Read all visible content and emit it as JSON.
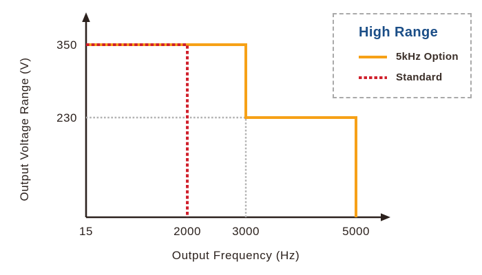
{
  "chart_data": {
    "type": "line",
    "title": "",
    "xlabel": "Output Frequency (Hz)",
    "ylabel": "Output Voltage Range (V)",
    "x_ticks": [
      "15",
      "2000",
      "3000",
      "5000"
    ],
    "y_ticks": [
      "350",
      "230"
    ],
    "x_axis_style": "schematic (non-linear spacing), arrow at right end",
    "y_axis_style": "schematic, arrow at top end",
    "series": [
      {
        "name": "5kHz Option",
        "color": "#F6A117",
        "style": "solid",
        "points": [
          [
            15,
            350
          ],
          [
            3000,
            350
          ],
          [
            3000,
            230
          ],
          [
            5000,
            230
          ],
          [
            5000,
            0
          ]
        ]
      },
      {
        "name": "Standard",
        "color": "#D0202C",
        "style": "dashed",
        "points": [
          [
            15,
            350
          ],
          [
            2000,
            350
          ],
          [
            2000,
            0
          ]
        ]
      }
    ],
    "reference_lines": [
      {
        "name": "230V guide",
        "color": "#B2B2B2",
        "style": "dashed",
        "points": [
          [
            15,
            230
          ],
          [
            3000,
            230
          ],
          [
            3000,
            0
          ]
        ]
      }
    ],
    "legend": {
      "position": "top-right, dashed border box",
      "title": "High Range",
      "title_color": "#1B4E87",
      "items": [
        {
          "label": "5kHz Option",
          "color": "#F6A117",
          "style": "solid"
        },
        {
          "label": "Standard",
          "color": "#D0202C",
          "style": "dashed"
        }
      ]
    },
    "colors": {
      "axis": "#2B211D",
      "tick_text": "#2B211D",
      "legend_border": "#A9A9A9",
      "background": "#FFFFFF"
    }
  }
}
